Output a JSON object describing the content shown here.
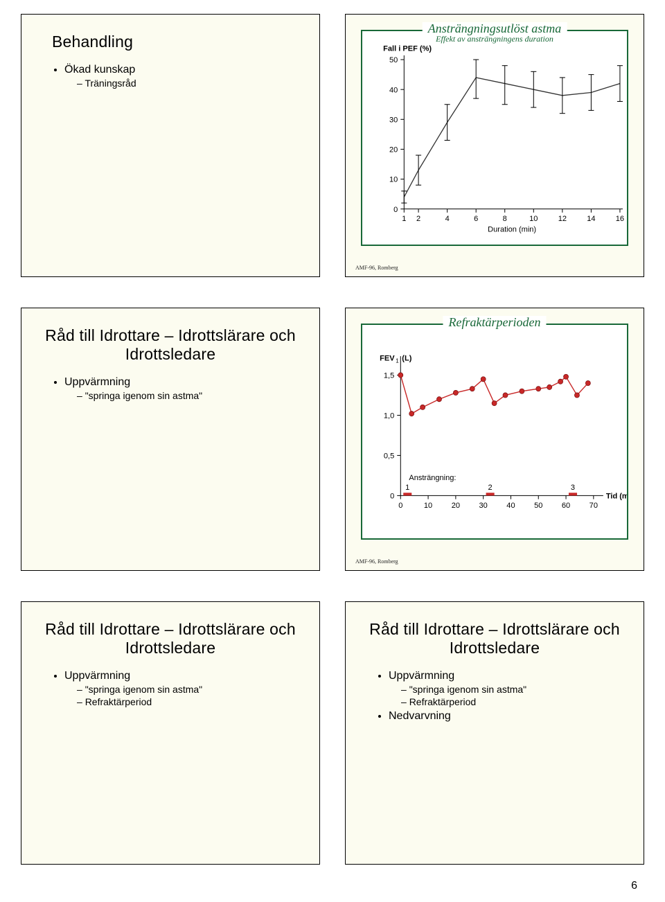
{
  "box1": {
    "title": "Behandling",
    "bullets": [
      {
        "label": "Ökad kunskap",
        "sub": [
          "Träningsråd"
        ]
      }
    ]
  },
  "box2_chart": {
    "type": "line-errorbar",
    "title": "Ansträngningsutlöst astma",
    "subtitle": "Effekt av ansträngningens duration",
    "ylabel": "Fall i PEF (%)",
    "xlabel": "Duration (min)",
    "y_ticks": [
      0,
      10,
      20,
      30,
      40,
      50
    ],
    "x_ticks": [
      1,
      2,
      4,
      6,
      8,
      10,
      12,
      14,
      16
    ],
    "points": [
      {
        "x": 1,
        "y": 4,
        "lo": 2,
        "hi": 6
      },
      {
        "x": 2,
        "y": 13,
        "lo": 8,
        "hi": 18
      },
      {
        "x": 4,
        "y": 29,
        "lo": 23,
        "hi": 35
      },
      {
        "x": 6,
        "y": 44,
        "lo": 37,
        "hi": 50
      },
      {
        "x": 8,
        "y": 42,
        "lo": 35,
        "hi": 48
      },
      {
        "x": 10,
        "y": 40,
        "lo": 34,
        "hi": 46
      },
      {
        "x": 12,
        "y": 38,
        "lo": 32,
        "hi": 44
      },
      {
        "x": 14,
        "y": 39,
        "lo": 33,
        "hi": 45
      },
      {
        "x": 16,
        "y": 42,
        "lo": 36,
        "hi": 48
      }
    ],
    "line_color": "#333333",
    "line_width": 1.3,
    "err_color": "#000000",
    "background": "#ffffff",
    "frame_color": "#186838",
    "caption": "AMF-96, Romberg"
  },
  "box3": {
    "title": "Råd till Idrottare – Idrottslärare och Idrottsledare",
    "bullets": [
      {
        "label": "Uppvärmning",
        "sub": [
          "\"springa igenom sin astma\""
        ]
      }
    ]
  },
  "box4_chart": {
    "type": "scatter-line",
    "title": "Refraktärperioden",
    "ylabel": "FEV₁ (L)",
    "xlabel": "Tid (min)",
    "y_ticks": [
      0,
      0.5,
      1.0,
      1.5
    ],
    "y_tick_labels": [
      "0",
      "0,5",
      "1,0",
      "1,5"
    ],
    "x_ticks": [
      0,
      10,
      20,
      30,
      40,
      50,
      60,
      70
    ],
    "x_range": [
      0,
      72
    ],
    "y_range": [
      0,
      1.7
    ],
    "points": [
      {
        "x": 0,
        "y": 1.5
      },
      {
        "x": 4,
        "y": 1.02
      },
      {
        "x": 8,
        "y": 1.1
      },
      {
        "x": 14,
        "y": 1.2
      },
      {
        "x": 20,
        "y": 1.28
      },
      {
        "x": 26,
        "y": 1.33
      },
      {
        "x": 30,
        "y": 1.45
      },
      {
        "x": 34,
        "y": 1.15
      },
      {
        "x": 38,
        "y": 1.25
      },
      {
        "x": 44,
        "y": 1.3
      },
      {
        "x": 50,
        "y": 1.33
      },
      {
        "x": 54,
        "y": 1.35
      },
      {
        "x": 58,
        "y": 1.42
      },
      {
        "x": 60,
        "y": 1.48
      },
      {
        "x": 64,
        "y": 1.25
      },
      {
        "x": 68,
        "y": 1.4
      }
    ],
    "markers_label": "Ansträngning:",
    "markers": [
      {
        "n": 1,
        "x": 2
      },
      {
        "n": 2,
        "x": 32
      },
      {
        "n": 3,
        "x": 62
      }
    ],
    "marker_fill": "#c82828",
    "line_color": "#c82828",
    "point_color": "#c82828",
    "axis_color": "#000000",
    "background": "#ffffff",
    "frame_color": "#186838",
    "caption": "AMF-96, Romberg"
  },
  "box5": {
    "title": "Råd till Idrottare – Idrottslärare och Idrottsledare",
    "bullets": [
      {
        "label": "Uppvärmning",
        "sub": [
          "\"springa igenom sin astma\"",
          "Refraktärperiod"
        ]
      }
    ]
  },
  "box6": {
    "title": "Råd till Idrottare – Idrottslärare och Idrottsledare",
    "bullets": [
      {
        "label": "Uppvärmning",
        "sub": [
          "\"springa igenom sin astma\"",
          "Refraktärperiod"
        ]
      },
      {
        "label": "Nedvarvning",
        "sub": []
      }
    ]
  },
  "page_number": "6"
}
